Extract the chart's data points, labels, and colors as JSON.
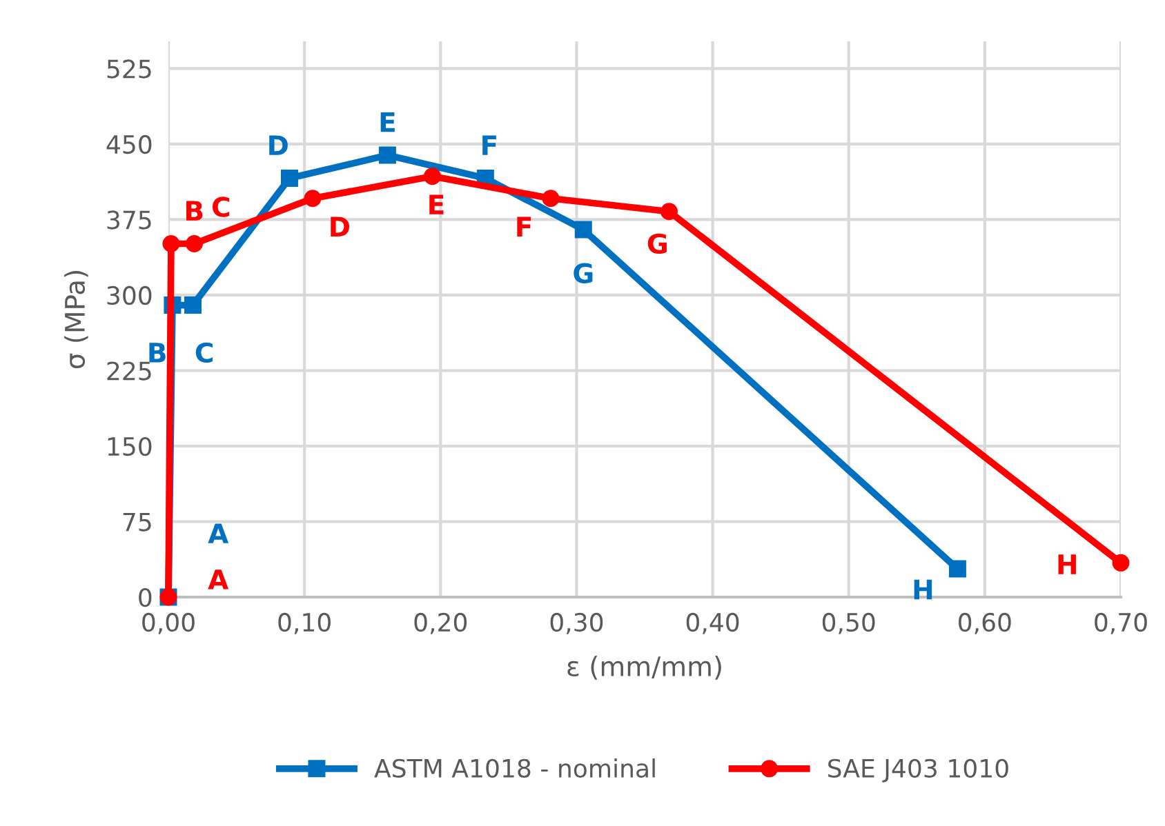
{
  "chart_data": {
    "type": "line",
    "xlabel": "ε (mm/mm)",
    "ylabel": "σ (MPa)",
    "xlim": [
      0,
      0.7
    ],
    "xticks": [
      {
        "value": 0,
        "label": "0,00"
      },
      {
        "value": 0.1,
        "label": "0,10"
      },
      {
        "value": 0.2,
        "label": "0,20"
      },
      {
        "value": 0.3,
        "label": "0,30"
      },
      {
        "value": 0.4,
        "label": "0,40"
      },
      {
        "value": 0.5,
        "label": "0,50"
      },
      {
        "value": 0.6,
        "label": "0,60"
      },
      {
        "value": 0.7,
        "label": "0,70"
      }
    ],
    "ylim": [
      0,
      552
    ],
    "yticks": [
      0,
      75,
      150,
      225,
      300,
      375,
      450,
      525
    ],
    "grid": true,
    "legend": "bottom",
    "line_style": "solid",
    "series": [
      {
        "name": "ASTM A1018 - nominal",
        "color": "#0070c0",
        "marker": "square",
        "x": [
          0,
          0.003,
          0.018,
          0.089,
          0.161,
          0.233,
          0.305,
          0.58
        ],
        "values": [
          0,
          290,
          290,
          416,
          439,
          416,
          365,
          28
        ],
        "value_labels": [
          "A",
          "B",
          "C",
          "D",
          "E",
          "F",
          "G",
          "H"
        ]
      },
      {
        "name": "SAE J403 1010",
        "color": "#ff0000",
        "marker": "circle",
        "x": [
          0,
          0.002,
          0.019,
          0.106,
          0.194,
          0.281,
          0.368,
          0.7
        ],
        "values": [
          0,
          351,
          351,
          396,
          418,
          396,
          383,
          34
        ],
        "value_labels": [
          "A",
          "B",
          "C",
          "D",
          "E",
          "F",
          "G",
          "H"
        ]
      }
    ]
  }
}
